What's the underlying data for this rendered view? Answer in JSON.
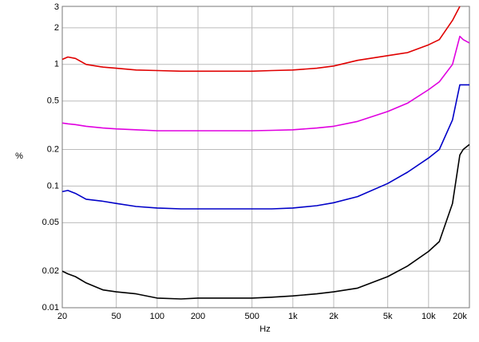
{
  "chart_data": {
    "type": "line",
    "xlabel": "Hz",
    "ylabel": "%",
    "xscale": "log",
    "yscale": "log",
    "grid": true,
    "xlim": [
      20,
      20000
    ],
    "ylim": [
      0.01,
      3
    ],
    "xticks": [
      20,
      50,
      100,
      200,
      500,
      {
        "value": 1000,
        "label": "1k"
      },
      {
        "value": 2000,
        "label": "2k"
      },
      {
        "value": 5000,
        "label": "5k"
      },
      {
        "value": 10000,
        "label": "10k"
      },
      {
        "value": 20000,
        "label": "20k"
      }
    ],
    "yticks": [
      0.01,
      0.02,
      0.05,
      0.1,
      0.2,
      0.5,
      1,
      2,
      3
    ],
    "x": [
      20,
      22,
      25,
      30,
      40,
      50,
      70,
      100,
      150,
      200,
      300,
      500,
      700,
      1000,
      1500,
      2000,
      3000,
      5000,
      7000,
      10000,
      12000,
      15000,
      17000,
      18000,
      20000
    ],
    "series": [
      {
        "color": "#e00000",
        "values": [
          1.1,
          1.15,
          1.12,
          1.0,
          0.95,
          0.93,
          0.9,
          0.89,
          0.88,
          0.88,
          0.88,
          0.88,
          0.89,
          0.9,
          0.93,
          0.97,
          1.08,
          1.18,
          1.25,
          1.45,
          1.6,
          2.3,
          3.0,
          null,
          null
        ]
      },
      {
        "color": "#e000e0",
        "values": [
          0.33,
          0.325,
          0.32,
          0.31,
          0.3,
          0.295,
          0.29,
          0.285,
          0.285,
          0.285,
          0.285,
          0.285,
          0.287,
          0.29,
          0.3,
          0.31,
          0.34,
          0.41,
          0.48,
          0.62,
          0.72,
          1.0,
          1.7,
          1.6,
          1.5
        ]
      },
      {
        "color": "#0000c8",
        "values": [
          0.09,
          0.092,
          0.087,
          0.078,
          0.075,
          0.072,
          0.068,
          0.066,
          0.065,
          0.065,
          0.065,
          0.065,
          0.065,
          0.066,
          0.069,
          0.073,
          0.082,
          0.105,
          0.13,
          0.17,
          0.2,
          0.35,
          0.68,
          0.68,
          0.68
        ]
      },
      {
        "color": "#000000",
        "values": [
          0.02,
          0.019,
          0.018,
          0.016,
          0.014,
          0.0135,
          0.013,
          0.012,
          0.0118,
          0.012,
          0.012,
          0.012,
          0.0122,
          0.0125,
          0.013,
          0.0135,
          0.0145,
          0.018,
          0.022,
          0.029,
          0.035,
          0.072,
          0.18,
          0.2,
          0.22
        ]
      }
    ]
  }
}
